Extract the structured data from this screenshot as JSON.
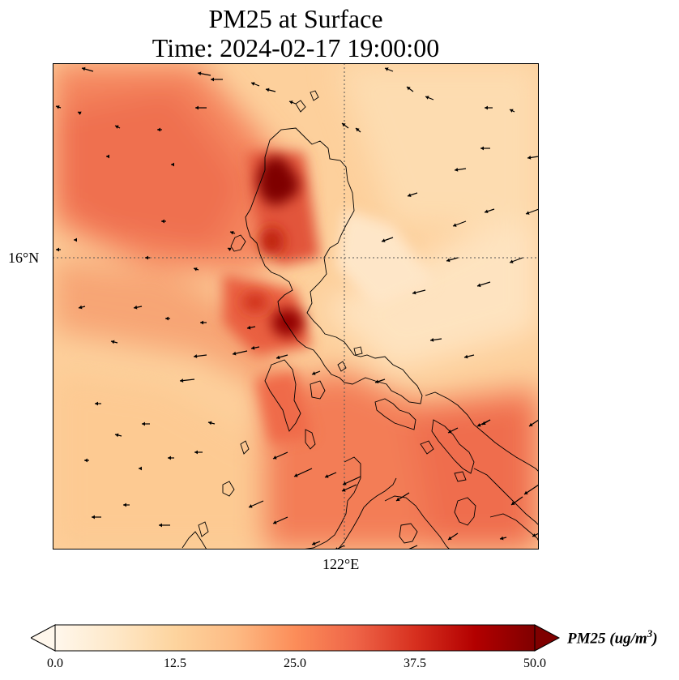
{
  "title": {
    "line1": "PM25 at Surface",
    "line2": "Time: 2024-02-17 19:00:00"
  },
  "map": {
    "lat_label": "16°N",
    "lon_label": "122°E",
    "gridline_lat": 16,
    "gridline_lon": 122
  },
  "colorbar": {
    "label_main": "PM25 (ug/m",
    "label_sup": "3",
    "label_close": ")",
    "ticks": [
      "0.0",
      "12.5",
      "25.0",
      "37.5",
      "50.0"
    ],
    "min": 0,
    "max": 50,
    "extend": "both",
    "colormap": "OrRd",
    "colors": [
      "#fff7ec",
      "#fee8c8",
      "#fdd49e",
      "#fdbb84",
      "#fc8d59",
      "#ef6548",
      "#d7301f",
      "#b30000",
      "#7f0000"
    ]
  }
}
